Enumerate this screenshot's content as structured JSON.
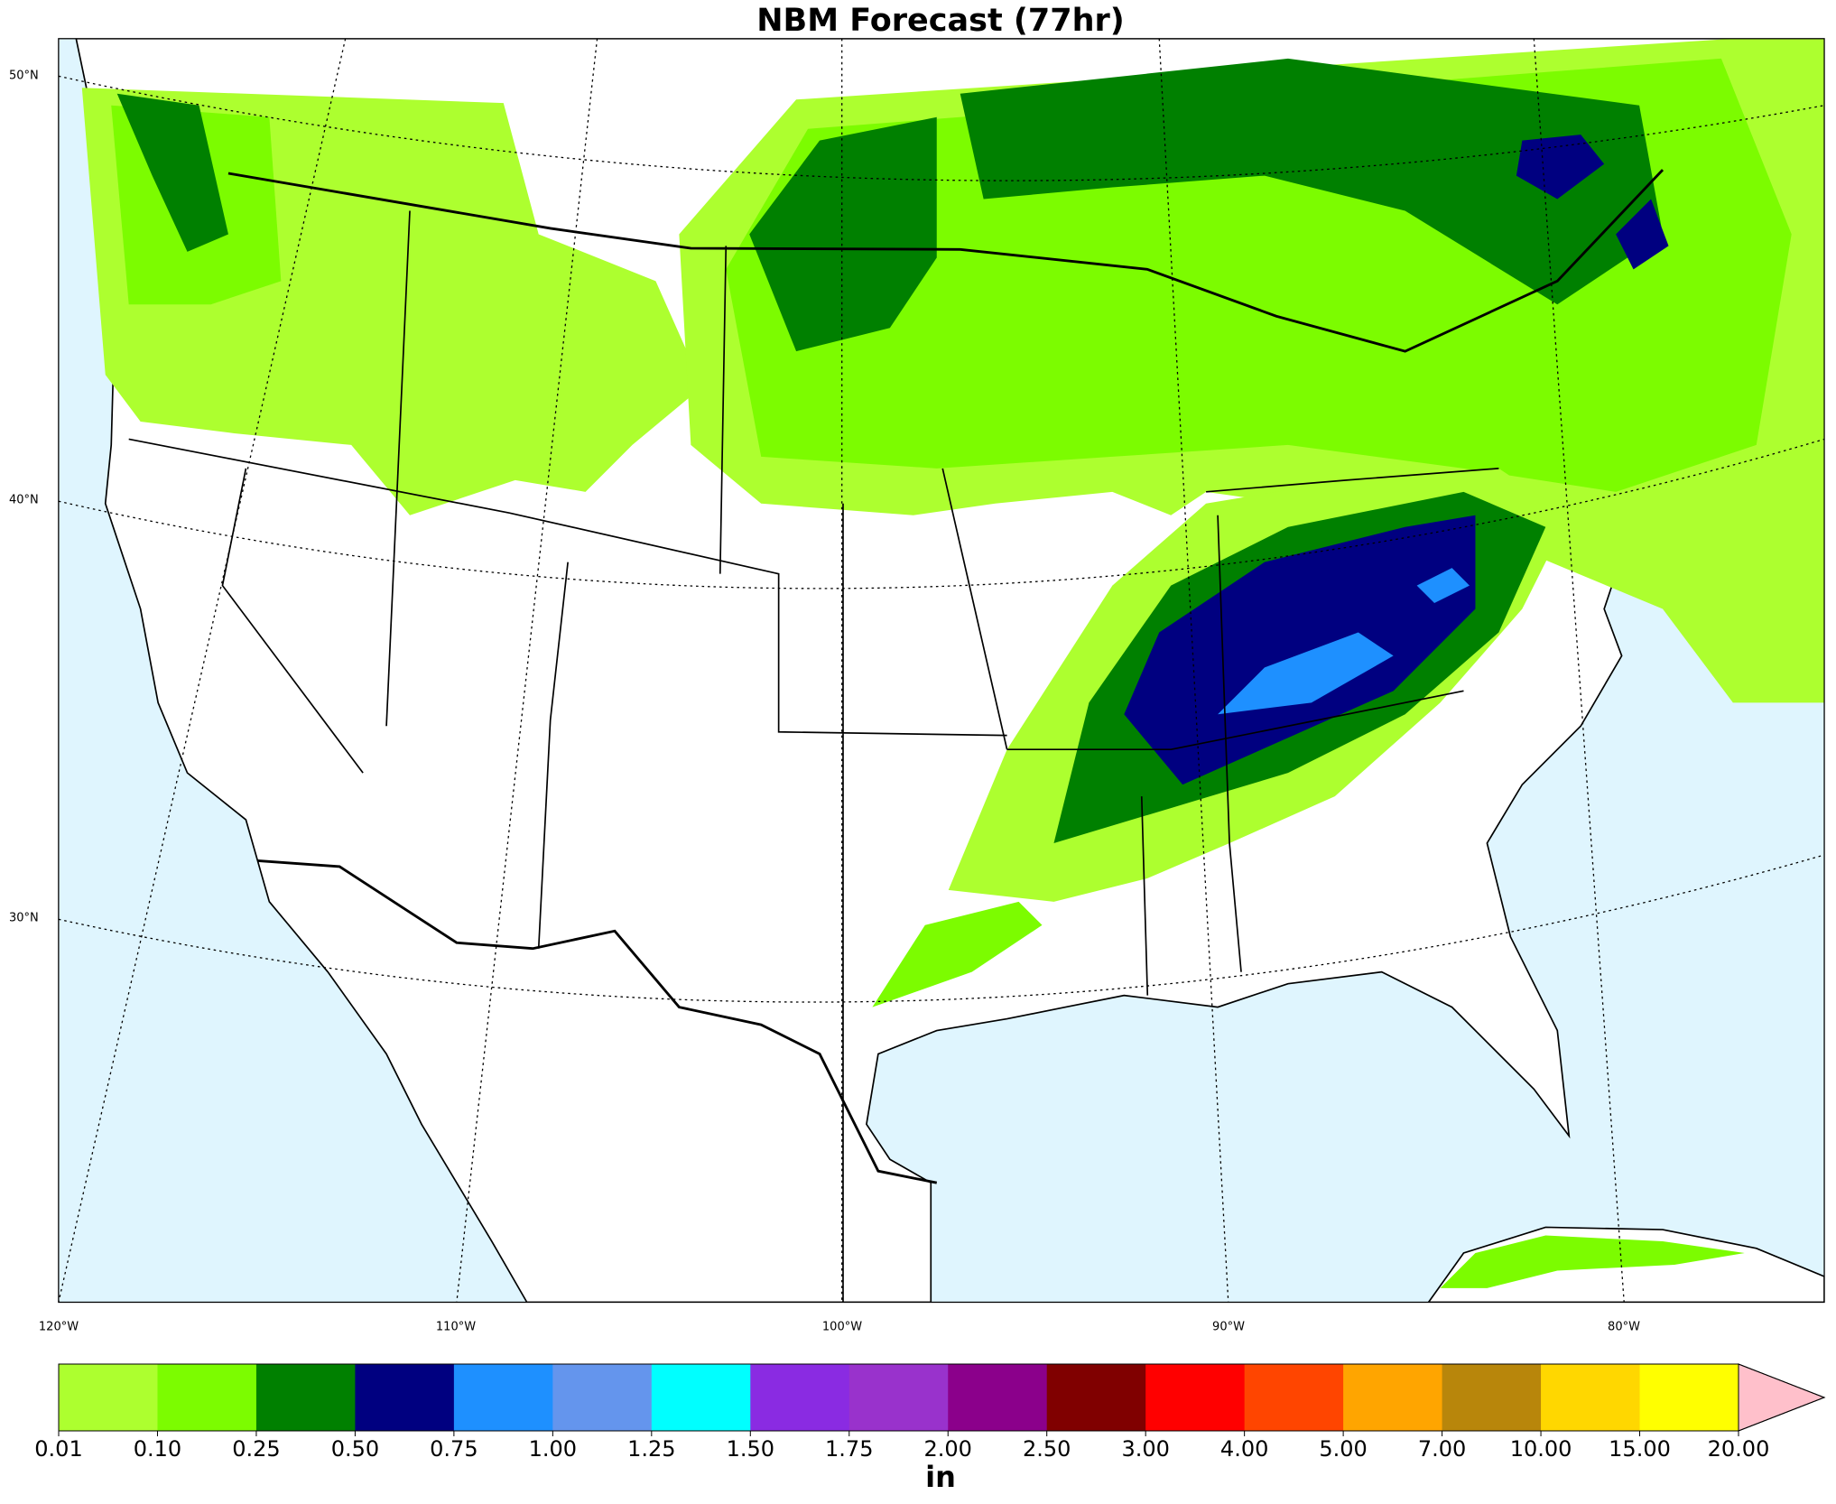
{
  "title": "NBM Forecast (77hr)",
  "lat_labels": [
    "50°N",
    "40°N",
    "30°N"
  ],
  "lon_labels": [
    "120°W",
    "110°W",
    "100°W",
    "90°W",
    "80°W"
  ],
  "colorbar": {
    "levels": [
      {
        "value": 0.01,
        "label": "0.01"
      },
      {
        "value": 0.1,
        "label": "0.10"
      },
      {
        "value": 0.25,
        "label": "0.25"
      },
      {
        "value": 0.5,
        "label": "0.50"
      },
      {
        "value": 0.75,
        "label": "0.75"
      },
      {
        "value": 1,
        "label": "1.00"
      },
      {
        "value": 1.25,
        "label": "1.25"
      },
      {
        "value": 1.5,
        "label": "1.50"
      },
      {
        "value": 1.75,
        "label": "1.75"
      },
      {
        "value": 2,
        "label": "2.00"
      },
      {
        "value": 2.5,
        "label": "2.50"
      },
      {
        "value": 3,
        "label": "3.00"
      },
      {
        "value": 4,
        "label": "4.00"
      },
      {
        "value": 5,
        "label": "5.00"
      },
      {
        "value": 7,
        "label": "7.00"
      },
      {
        "value": 10,
        "label": "10.00"
      },
      {
        "value": 15,
        "label": "15.00"
      },
      {
        "value": 20,
        "label": "20.00"
      }
    ],
    "colors": [
      "#adff2f",
      "#7cfc00",
      "#008000",
      "#000080",
      "#1e90ff",
      "#6495ed",
      "#00ffff",
      "#8a2be2",
      "#9932cc",
      "#8b008b",
      "#800000",
      "#ff0000",
      "#ff4500",
      "#ffa500",
      "#b8860b",
      "#ffd700",
      "#ffff00"
    ],
    "extend_color": "#ffc0cb",
    "unit": "in"
  }
}
